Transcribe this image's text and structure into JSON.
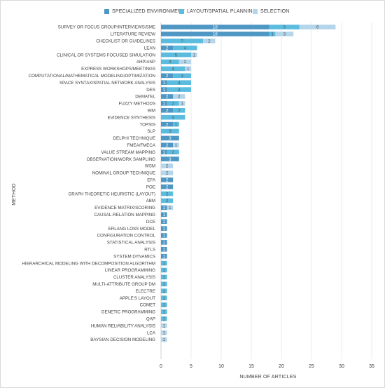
{
  "chart_data": {
    "type": "bar",
    "orientation": "horizontal",
    "stacked": true,
    "xlabel": "NUMBER OF ARTICLES",
    "ylabel": "METHOD",
    "xlim": [
      0,
      35
    ],
    "xticks": [
      0,
      5,
      10,
      15,
      20,
      25,
      30,
      35
    ],
    "grid": true,
    "legend_position": "top",
    "series": [
      {
        "name": "SPECIALIZED ENVIRONMENT",
        "color": "#4e97c4"
      },
      {
        "name": "LAYOUT/SPATIAL PLANNING",
        "color": "#5bbcdf"
      },
      {
        "name": "SELECTION",
        "color": "#b4d5ea"
      }
    ],
    "categories": [
      "SURVEY OR FOCUS GROUP/INTERVIEWS/SME",
      "LITERATURE REVIEW",
      "CHECKLIST OR GUIDELINES",
      "LEAN",
      "CLINICAL OR SYSTEMS FOCUSED SIMULATION",
      "AHP/ANP",
      "EXPRESS WORKSHOPS/MEETINGS",
      "COMPUTATIONAL/MATHEMATICAL MODELING/OPTIMIZATION",
      "SPACE SYNTAX/SPATIAL NETWORK ANALYSIS",
      "DES",
      "DEMATEL",
      "FUZZY METHODS",
      "BIM",
      "EVIDENCE SYNTHESIS",
      "TOPSIS",
      "SLP",
      "DELPHI TECHNIQUE",
      "FMEA/FMECA",
      "VALUE STREAM MAPPING",
      "OBSERVATION/WORK SAMPLING",
      "WSM",
      "NOMINAL GROUP TECHNIQUE",
      "EFA",
      "POE",
      "GRAPH THEORETIC HEURISTIC (LAYOUT)",
      "ABM",
      "EVIDENCE MATRIX/SCORING",
      "CAUSAL-RELATION MAPPING",
      "DCE",
      "ERLANG LOSS MODEL",
      "CONFIGURATION CONTROL",
      "STATISTICAL ANALYSIS",
      "RTLS",
      "SYSTEM DYNAMICS",
      "HIERARCHICAL MODELING WITH DECOMPOSITION ALGORITHM",
      "LINEAR PROGRAMMING",
      "CLUSTER ANALYSIS",
      "MULTI-ATTRIBUTE GROUP DM",
      "ELECTRE",
      "APPLE'S LAYOUT",
      "COMET",
      "GENETIC PROGRAMMING",
      "QAP",
      "HUMAN RELIABILITY ANALYSIS",
      "LCA",
      "BAYSIAN DECISION MODELING"
    ],
    "values": [
      [
        18,
        5,
        6
      ],
      [
        18,
        1,
        3
      ],
      [
        0,
        7,
        2
      ],
      [
        2,
        4,
        0
      ],
      [
        0,
        5,
        1
      ],
      [
        0,
        3,
        2
      ],
      [
        0,
        4,
        1
      ],
      [
        2,
        3,
        0
      ],
      [
        1,
        4,
        0
      ],
      [
        1,
        4,
        0
      ],
      [
        2,
        0,
        2
      ],
      [
        1,
        2,
        1
      ],
      [
        2,
        2,
        0
      ],
      [
        0,
        4,
        0
      ],
      [
        2,
        1,
        0
      ],
      [
        0,
        3,
        0
      ],
      [
        3,
        0,
        0
      ],
      [
        2,
        0,
        1
      ],
      [
        1,
        2,
        0
      ],
      [
        3,
        0,
        0
      ],
      [
        0,
        0,
        2
      ],
      [
        0,
        0,
        2
      ],
      [
        2,
        0,
        0
      ],
      [
        2,
        0,
        0
      ],
      [
        0,
        2,
        0
      ],
      [
        0,
        2,
        0
      ],
      [
        1,
        0,
        1
      ],
      [
        1,
        0,
        0
      ],
      [
        1,
        0,
        0
      ],
      [
        1,
        0,
        0
      ],
      [
        1,
        0,
        0
      ],
      [
        1,
        0,
        0
      ],
      [
        1,
        0,
        0
      ],
      [
        1,
        0,
        0
      ],
      [
        0,
        1,
        0
      ],
      [
        0,
        1,
        0
      ],
      [
        0,
        1,
        0
      ],
      [
        0,
        1,
        0
      ],
      [
        0,
        1,
        0
      ],
      [
        0,
        1,
        0
      ],
      [
        0,
        1,
        0
      ],
      [
        0,
        1,
        0
      ],
      [
        0,
        1,
        0
      ],
      [
        0,
        0,
        1
      ],
      [
        0,
        0,
        1
      ],
      [
        0,
        0,
        1
      ]
    ]
  }
}
